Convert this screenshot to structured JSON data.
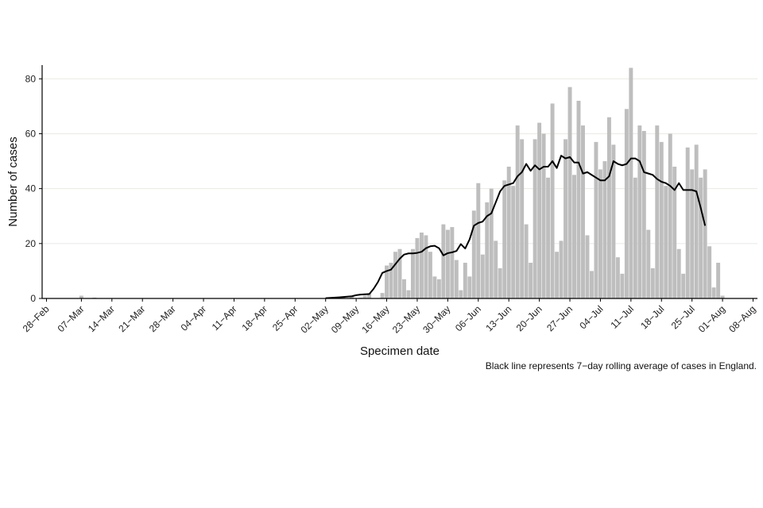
{
  "chart_data": {
    "type": "bar",
    "xlabel": "Specimen date",
    "ylabel": "Number of cases",
    "caption": "Black line represents 7−day rolling average of cases in England.",
    "ylim": [
      0,
      85
    ],
    "y_ticks": [
      0,
      20,
      40,
      60,
      80
    ],
    "xlim": [
      "2020-02-27",
      "2020-08-09"
    ],
    "x_tick_dates": [
      "2020-02-28",
      "2020-03-07",
      "2020-03-14",
      "2020-03-21",
      "2020-03-28",
      "2020-04-04",
      "2020-04-11",
      "2020-04-18",
      "2020-04-25",
      "2020-05-02",
      "2020-05-09",
      "2020-05-16",
      "2020-05-23",
      "2020-05-30",
      "2020-06-06",
      "2020-06-13",
      "2020-06-20",
      "2020-06-27",
      "2020-07-04",
      "2020-07-11",
      "2020-07-18",
      "2020-07-25",
      "2020-08-01",
      "2020-08-08"
    ],
    "x_tick_labels": [
      "28−Feb",
      "07−Mar",
      "14−Mar",
      "21−Mar",
      "28−Mar",
      "04−Apr",
      "11−Apr",
      "18−Apr",
      "25−Apr",
      "02−May",
      "09−May",
      "16−May",
      "23−May",
      "30−May",
      "06−Jun",
      "13−Jun",
      "20−Jun",
      "27−Jun",
      "04−Jul",
      "11−Jul",
      "18−Jul",
      "25−Jul",
      "01−Aug",
      "08−Aug"
    ],
    "grid": "horizontal",
    "bar_color": "#bebebe",
    "line_color": "#000000",
    "series": [
      {
        "type": "bar",
        "data": [
          [
            "2020-03-07",
            1
          ],
          [
            "2020-03-10",
            0.3
          ],
          [
            "2020-05-03",
            0.3
          ],
          [
            "2020-05-06",
            0.3
          ],
          [
            "2020-05-08",
            1
          ],
          [
            "2020-05-10",
            0.3
          ],
          [
            "2020-05-11",
            1
          ],
          [
            "2020-05-12",
            2
          ],
          [
            "2020-05-15",
            2
          ],
          [
            "2020-05-16",
            12
          ],
          [
            "2020-05-17",
            13
          ],
          [
            "2020-05-18",
            17
          ],
          [
            "2020-05-19",
            18
          ],
          [
            "2020-05-20",
            7
          ],
          [
            "2020-05-21",
            3
          ],
          [
            "2020-05-22",
            18
          ],
          [
            "2020-05-23",
            22
          ],
          [
            "2020-05-24",
            24
          ],
          [
            "2020-05-25",
            23
          ],
          [
            "2020-05-26",
            17
          ],
          [
            "2020-05-27",
            8
          ],
          [
            "2020-05-28",
            7
          ],
          [
            "2020-05-29",
            27
          ],
          [
            "2020-05-30",
            25
          ],
          [
            "2020-05-31",
            26
          ],
          [
            "2020-06-01",
            14
          ],
          [
            "2020-06-02",
            3
          ],
          [
            "2020-06-03",
            13
          ],
          [
            "2020-06-04",
            8
          ],
          [
            "2020-06-05",
            32
          ],
          [
            "2020-06-06",
            42
          ],
          [
            "2020-06-07",
            16
          ],
          [
            "2020-06-08",
            35
          ],
          [
            "2020-06-09",
            40
          ],
          [
            "2020-06-10",
            21
          ],
          [
            "2020-06-11",
            11
          ],
          [
            "2020-06-12",
            43
          ],
          [
            "2020-06-13",
            48
          ],
          [
            "2020-06-14",
            41
          ],
          [
            "2020-06-15",
            63
          ],
          [
            "2020-06-16",
            58
          ],
          [
            "2020-06-17",
            27
          ],
          [
            "2020-06-18",
            13
          ],
          [
            "2020-06-19",
            58
          ],
          [
            "2020-06-20",
            64
          ],
          [
            "2020-06-21",
            60
          ],
          [
            "2020-06-22",
            44
          ],
          [
            "2020-06-23",
            71
          ],
          [
            "2020-06-24",
            17
          ],
          [
            "2020-06-25",
            21
          ],
          [
            "2020-06-26",
            58
          ],
          [
            "2020-06-27",
            77
          ],
          [
            "2020-06-28",
            45
          ],
          [
            "2020-06-29",
            72
          ],
          [
            "2020-06-30",
            63
          ],
          [
            "2020-07-01",
            23
          ],
          [
            "2020-07-02",
            10
          ],
          [
            "2020-07-03",
            57
          ],
          [
            "2020-07-04",
            47
          ],
          [
            "2020-07-05",
            50
          ],
          [
            "2020-07-06",
            66
          ],
          [
            "2020-07-07",
            56
          ],
          [
            "2020-07-08",
            15
          ],
          [
            "2020-07-09",
            9
          ],
          [
            "2020-07-10",
            69
          ],
          [
            "2020-07-11",
            84
          ],
          [
            "2020-07-12",
            44
          ],
          [
            "2020-07-13",
            63
          ],
          [
            "2020-07-14",
            61
          ],
          [
            "2020-07-15",
            25
          ],
          [
            "2020-07-16",
            11
          ],
          [
            "2020-07-17",
            63
          ],
          [
            "2020-07-18",
            57
          ],
          [
            "2020-07-19",
            41
          ],
          [
            "2020-07-20",
            60
          ],
          [
            "2020-07-21",
            48
          ],
          [
            "2020-07-22",
            18
          ],
          [
            "2020-07-23",
            9
          ],
          [
            "2020-07-24",
            55
          ],
          [
            "2020-07-25",
            47
          ],
          [
            "2020-07-26",
            56
          ],
          [
            "2020-07-27",
            44
          ],
          [
            "2020-07-28",
            47
          ],
          [
            "2020-07-29",
            19
          ],
          [
            "2020-07-30",
            4
          ],
          [
            "2020-07-31",
            13
          ],
          [
            "2020-08-01",
            1
          ]
        ]
      },
      {
        "type": "line",
        "data": [
          [
            "2020-05-02",
            0.1
          ],
          [
            "2020-05-05",
            0.4
          ],
          [
            "2020-05-08",
            0.8
          ],
          [
            "2020-05-09",
            1.2
          ],
          [
            "2020-05-10",
            1.4
          ],
          [
            "2020-05-11",
            1.5
          ],
          [
            "2020-05-12",
            1.6
          ],
          [
            "2020-05-13",
            3.5
          ],
          [
            "2020-05-14",
            6
          ],
          [
            "2020-05-15",
            9.3
          ],
          [
            "2020-05-16",
            10
          ],
          [
            "2020-05-17",
            10.5
          ],
          [
            "2020-05-18",
            12.5
          ],
          [
            "2020-05-19",
            14.5
          ],
          [
            "2020-05-20",
            16
          ],
          [
            "2020-05-21",
            16.4
          ],
          [
            "2020-05-22",
            16.4
          ],
          [
            "2020-05-23",
            16.6
          ],
          [
            "2020-05-24",
            17
          ],
          [
            "2020-05-25",
            18.3
          ],
          [
            "2020-05-26",
            19
          ],
          [
            "2020-05-27",
            19.2
          ],
          [
            "2020-05-28",
            18.3
          ],
          [
            "2020-05-29",
            15.7
          ],
          [
            "2020-05-30",
            16.5
          ],
          [
            "2020-05-31",
            16.8
          ],
          [
            "2020-06-01",
            17.3
          ],
          [
            "2020-06-02",
            19.8
          ],
          [
            "2020-06-03",
            18.2
          ],
          [
            "2020-06-04",
            21.5
          ],
          [
            "2020-06-05",
            26.5
          ],
          [
            "2020-06-06",
            27.5
          ],
          [
            "2020-06-07",
            28
          ],
          [
            "2020-06-08",
            30
          ],
          [
            "2020-06-09",
            31
          ],
          [
            "2020-06-10",
            35
          ],
          [
            "2020-06-11",
            39
          ],
          [
            "2020-06-12",
            41
          ],
          [
            "2020-06-13",
            41.5
          ],
          [
            "2020-06-14",
            42
          ],
          [
            "2020-06-15",
            44.5
          ],
          [
            "2020-06-16",
            46
          ],
          [
            "2020-06-17",
            49
          ],
          [
            "2020-06-18",
            46.5
          ],
          [
            "2020-06-19",
            48.5
          ],
          [
            "2020-06-20",
            47
          ],
          [
            "2020-06-21",
            48
          ],
          [
            "2020-06-22",
            48
          ],
          [
            "2020-06-23",
            50
          ],
          [
            "2020-06-24",
            47.5
          ],
          [
            "2020-06-25",
            52
          ],
          [
            "2020-06-26",
            51
          ],
          [
            "2020-06-27",
            51.5
          ],
          [
            "2020-06-28",
            49.5
          ],
          [
            "2020-06-29",
            49.5
          ],
          [
            "2020-06-30",
            45.5
          ],
          [
            "2020-07-01",
            46
          ],
          [
            "2020-07-02",
            45
          ],
          [
            "2020-07-03",
            44
          ],
          [
            "2020-07-04",
            43
          ],
          [
            "2020-07-05",
            43
          ],
          [
            "2020-07-06",
            44.5
          ],
          [
            "2020-07-07",
            50
          ],
          [
            "2020-07-08",
            49
          ],
          [
            "2020-07-09",
            48.5
          ],
          [
            "2020-07-10",
            49
          ],
          [
            "2020-07-11",
            51
          ],
          [
            "2020-07-12",
            51
          ],
          [
            "2020-07-13",
            50
          ],
          [
            "2020-07-14",
            46
          ],
          [
            "2020-07-15",
            45.5
          ],
          [
            "2020-07-16",
            45
          ],
          [
            "2020-07-17",
            43.5
          ],
          [
            "2020-07-18",
            42.5
          ],
          [
            "2020-07-19",
            42
          ],
          [
            "2020-07-20",
            41
          ],
          [
            "2020-07-21",
            39.5
          ],
          [
            "2020-07-22",
            42
          ],
          [
            "2020-07-23",
            39.5
          ],
          [
            "2020-07-24",
            39.5
          ],
          [
            "2020-07-25",
            39.5
          ],
          [
            "2020-07-26",
            39
          ],
          [
            "2020-07-27",
            33
          ],
          [
            "2020-07-28",
            26.5
          ]
        ]
      }
    ]
  }
}
